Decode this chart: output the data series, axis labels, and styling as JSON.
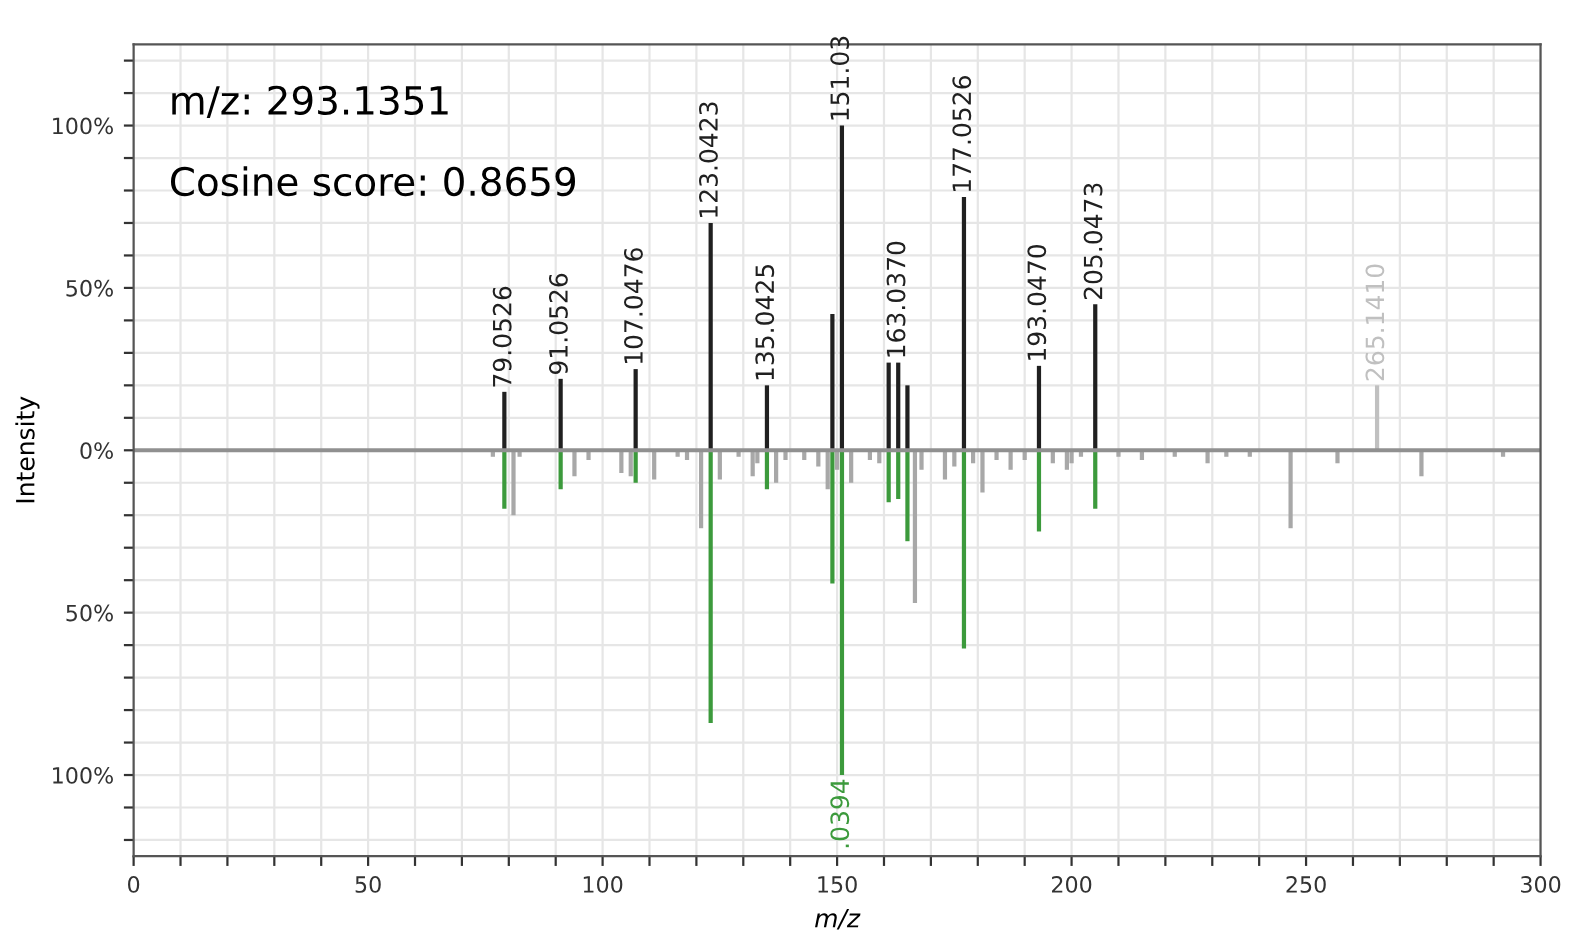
{
  "chart_data": {
    "type": "bar",
    "xlabel": "m/z",
    "ylabel": "Intensity",
    "legend": false,
    "grid": true,
    "xlim": [
      0,
      300
    ],
    "xticks": [
      0,
      {
        "value": 10,
        "label": null
      },
      {
        "value": 20,
        "label": null
      },
      {
        "value": 30,
        "label": null
      },
      {
        "value": 40,
        "label": null
      },
      50,
      {
        "value": 60,
        "label": null
      },
      {
        "value": 70,
        "label": null
      },
      {
        "value": 80,
        "label": null
      },
      {
        "value": 90,
        "label": null
      },
      100,
      {
        "value": 110,
        "label": null
      },
      {
        "value": 120,
        "label": null
      },
      {
        "value": 130,
        "label": null
      },
      {
        "value": 140,
        "label": null
      },
      150,
      {
        "value": 160,
        "label": null
      },
      {
        "value": 170,
        "label": null
      },
      {
        "value": 180,
        "label": null
      },
      {
        "value": 190,
        "label": null
      },
      200,
      {
        "value": 210,
        "label": null
      },
      {
        "value": 220,
        "label": null
      },
      {
        "value": 230,
        "label": null
      },
      {
        "value": 240,
        "label": null
      },
      250,
      {
        "value": 260,
        "label": null
      },
      {
        "value": 270,
        "label": null
      },
      {
        "value": 280,
        "label": null
      },
      {
        "value": 290,
        "label": null
      },
      300
    ],
    "ylim": [
      -125,
      125
    ],
    "yticks": [
      {
        "value": -120,
        "label": null
      },
      {
        "value": -110,
        "label": null
      },
      {
        "value": -100,
        "label": "100%"
      },
      {
        "value": -90,
        "label": null
      },
      {
        "value": -80,
        "label": null
      },
      {
        "value": -70,
        "label": null
      },
      {
        "value": -60,
        "label": null
      },
      {
        "value": -50,
        "label": "50%"
      },
      {
        "value": -40,
        "label": null
      },
      {
        "value": -30,
        "label": null
      },
      {
        "value": -20,
        "label": null
      },
      {
        "value": -10,
        "label": null
      },
      {
        "value": 0,
        "label": "0%"
      },
      {
        "value": 10,
        "label": null
      },
      {
        "value": 20,
        "label": null
      },
      {
        "value": 30,
        "label": null
      },
      {
        "value": 40,
        "label": null
      },
      {
        "value": 50,
        "label": "50%"
      },
      {
        "value": 60,
        "label": null
      },
      {
        "value": 70,
        "label": null
      },
      {
        "value": 80,
        "label": null
      },
      {
        "value": 90,
        "label": null
      },
      {
        "value": 100,
        "label": "100%"
      },
      {
        "value": 110,
        "label": null
      },
      {
        "value": 120,
        "label": null
      }
    ],
    "series": [
      {
        "x": [
          79.0526,
          91.0526,
          107.0476,
          123.0423,
          135.0425,
          149,
          151.03,
          161,
          163.037,
          165,
          177.0526,
          193.047,
          205.0473,
          265.141
        ],
        "values": [
          18,
          22,
          25,
          70,
          20,
          42,
          100,
          27,
          27,
          20,
          78,
          26,
          45,
          20
        ],
        "colors": [
          "#202020",
          "#202020",
          "#202020",
          "#202020",
          "#202020",
          "#202020",
          "#202020",
          "#202020",
          "#202020",
          "#202020",
          "#202020",
          "#202020",
          "#202020",
          "#c0c0c0"
        ]
      },
      {
        "x": [
          76.6,
          79.0526,
          81,
          82.3,
          91.0526,
          94,
          97,
          104,
          106,
          107.0476,
          111,
          116,
          118,
          121,
          123.0423,
          125,
          129,
          132,
          133,
          135.0425,
          137,
          139,
          143,
          146,
          148,
          149,
          150,
          151.0394,
          153,
          157,
          159,
          161,
          163.037,
          165,
          166.6,
          168,
          173,
          175,
          177.0526,
          179,
          181,
          184,
          187,
          190,
          193.047,
          196,
          199,
          200,
          202,
          205.0473,
          210,
          215,
          222,
          229,
          233,
          238,
          246.7,
          256.7,
          274.6,
          292
        ],
        "values": [
          -2,
          -18,
          -20,
          -2,
          -12,
          -8,
          -3,
          -7,
          -8,
          -10,
          -9,
          -2,
          -3,
          -24,
          -84,
          -9,
          -2,
          -8,
          -4,
          -12,
          -10,
          -3,
          -3,
          -5,
          -12,
          -41,
          -6,
          -100,
          -10,
          -3,
          -4,
          -16,
          -15,
          -28,
          -47,
          -6,
          -9,
          -5,
          -61,
          -4,
          -13,
          -3,
          -6,
          -3,
          -25,
          -4,
          -6,
          -4,
          -2,
          -18,
          -2,
          -3,
          -2,
          -4,
          -2,
          -2,
          -24,
          -4,
          -8,
          -2
        ],
        "colors": [
          "#a8a8a8",
          "#3c9a3c",
          "#a8a8a8",
          "#a8a8a8",
          "#3c9a3c",
          "#a8a8a8",
          "#a8a8a8",
          "#a8a8a8",
          "#a8a8a8",
          "#3c9a3c",
          "#a8a8a8",
          "#a8a8a8",
          "#a8a8a8",
          "#a8a8a8",
          "#3c9a3c",
          "#a8a8a8",
          "#a8a8a8",
          "#a8a8a8",
          "#a8a8a8",
          "#3c9a3c",
          "#a8a8a8",
          "#a8a8a8",
          "#a8a8a8",
          "#a8a8a8",
          "#a8a8a8",
          "#3c9a3c",
          "#a8a8a8",
          "#3c9a3c",
          "#a8a8a8",
          "#a8a8a8",
          "#a8a8a8",
          "#3c9a3c",
          "#3c9a3c",
          "#3c9a3c",
          "#a8a8a8",
          "#a8a8a8",
          "#a8a8a8",
          "#a8a8a8",
          "#3c9a3c",
          "#a8a8a8",
          "#a8a8a8",
          "#a8a8a8",
          "#a8a8a8",
          "#a8a8a8",
          "#3c9a3c",
          "#a8a8a8",
          "#a8a8a8",
          "#a8a8a8",
          "#a8a8a8",
          "#3c9a3c",
          "#a8a8a8",
          "#a8a8a8",
          "#a8a8a8",
          "#a8a8a8",
          "#a8a8a8",
          "#a8a8a8",
          "#a8a8a8",
          "#a8a8a8",
          "#a8a8a8",
          "#a8a8a8"
        ]
      }
    ],
    "annotations": [
      "m/z: 293.1351",
      "Cosine score: 0.8659",
      {
        "text": "79.0526",
        "x": 79.0526,
        "y": 18
      },
      {
        "text": "91.0526",
        "x": 91.0526,
        "y": 22
      },
      {
        "text": "107.0476",
        "x": 107.0476,
        "y": 25
      },
      {
        "text": "123.0423",
        "x": 123.0423,
        "y": 70
      },
      {
        "text": "135.0425",
        "x": 135.0425,
        "y": 20
      },
      {
        "text": "151.03",
        "x": 151.03,
        "y": 100
      },
      {
        "text": "163.0370",
        "x": 163.037,
        "y": 27
      },
      {
        "text": "177.0526",
        "x": 177.0526,
        "y": 78
      },
      {
        "text": "193.0470",
        "x": 193.047,
        "y": 26
      },
      {
        "text": "205.0473",
        "x": 205.0473,
        "y": 45
      },
      {
        "text": "265.1410",
        "x": 265.141,
        "y": 20
      },
      {
        "text": ".0394",
        "x": 151.0394,
        "y": -100
      }
    ]
  }
}
